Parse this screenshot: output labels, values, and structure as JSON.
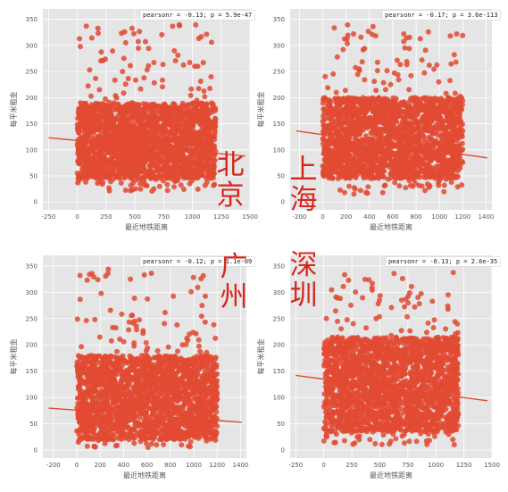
{
  "chart_data": [
    {
      "type": "scatter",
      "city": "北京",
      "xlabel": "最近地铁距离",
      "ylabel": "每平米租金",
      "annotation": "pearsonr = -0.13; p = 5.9e-47",
      "xlim": [
        -300,
        1500
      ],
      "ylim": [
        -15,
        370
      ],
      "xticks": [
        -250,
        0,
        250,
        500,
        750,
        1000,
        1250,
        1500
      ],
      "yticks": [
        0,
        50,
        100,
        150,
        200,
        250,
        300,
        350
      ],
      "data_x_range": [
        0,
        1200
      ],
      "data_y_range": [
        20,
        340
      ],
      "y_core": [
        45,
        190
      ],
      "regression": {
        "slope": -0.0205,
        "intercept": 118
      },
      "grid": true,
      "color": "#e24a33"
    },
    {
      "type": "scatter",
      "city": "上海",
      "xlabel": "最近地铁距离",
      "ylabel": "每平米租金",
      "annotation": "pearsonr = -0.17; p = 3.6e-113",
      "xlim": [
        -280,
        1450
      ],
      "ylim": [
        -15,
        370
      ],
      "xticks": [
        -200,
        0,
        200,
        400,
        600,
        800,
        1000,
        1200,
        1400
      ],
      "yticks": [
        0,
        50,
        100,
        150,
        200,
        250,
        300,
        350
      ],
      "data_x_range": [
        0,
        1200
      ],
      "data_y_range": [
        15,
        340
      ],
      "y_core": [
        45,
        200
      ],
      "regression": {
        "slope": -0.0315,
        "intercept": 129
      },
      "grid": true,
      "color": "#e24a33"
    },
    {
      "type": "scatter",
      "city": "广州",
      "xlabel": "最近地铁距离",
      "ylabel": "每平米租金",
      "annotation": "pearsonr = -0.12; p = 1.1e-09",
      "xlim": [
        -290,
        1450
      ],
      "ylim": [
        -15,
        370
      ],
      "xticks": [
        -200,
        0,
        200,
        400,
        600,
        800,
        1000,
        1200,
        1400
      ],
      "yticks": [
        0,
        50,
        100,
        150,
        200,
        250,
        300,
        350
      ],
      "data_x_range": [
        0,
        1200
      ],
      "data_y_range": [
        5,
        345
      ],
      "y_core": [
        20,
        180
      ],
      "regression": {
        "slope": -0.0163,
        "intercept": 76
      },
      "grid": true,
      "color": "#e24a33"
    },
    {
      "type": "scatter",
      "city": "深圳",
      "xlabel": "最近地铁距离",
      "ylabel": "每平米租金",
      "annotation": "pearsonr = -0.13; p = 2.6e-35",
      "xlim": [
        -300,
        1500
      ],
      "ylim": [
        -15,
        370
      ],
      "xticks": [
        -250,
        0,
        250,
        500,
        750,
        1000,
        1250,
        1500
      ],
      "yticks": [
        0,
        50,
        100,
        150,
        200,
        250,
        300,
        350
      ],
      "data_x_range": [
        0,
        1200
      ],
      "data_y_range": [
        10,
        340
      ],
      "y_core": [
        35,
        215
      ],
      "regression": {
        "slope": -0.0282,
        "intercept": 135
      },
      "grid": true,
      "color": "#e24a33"
    }
  ]
}
